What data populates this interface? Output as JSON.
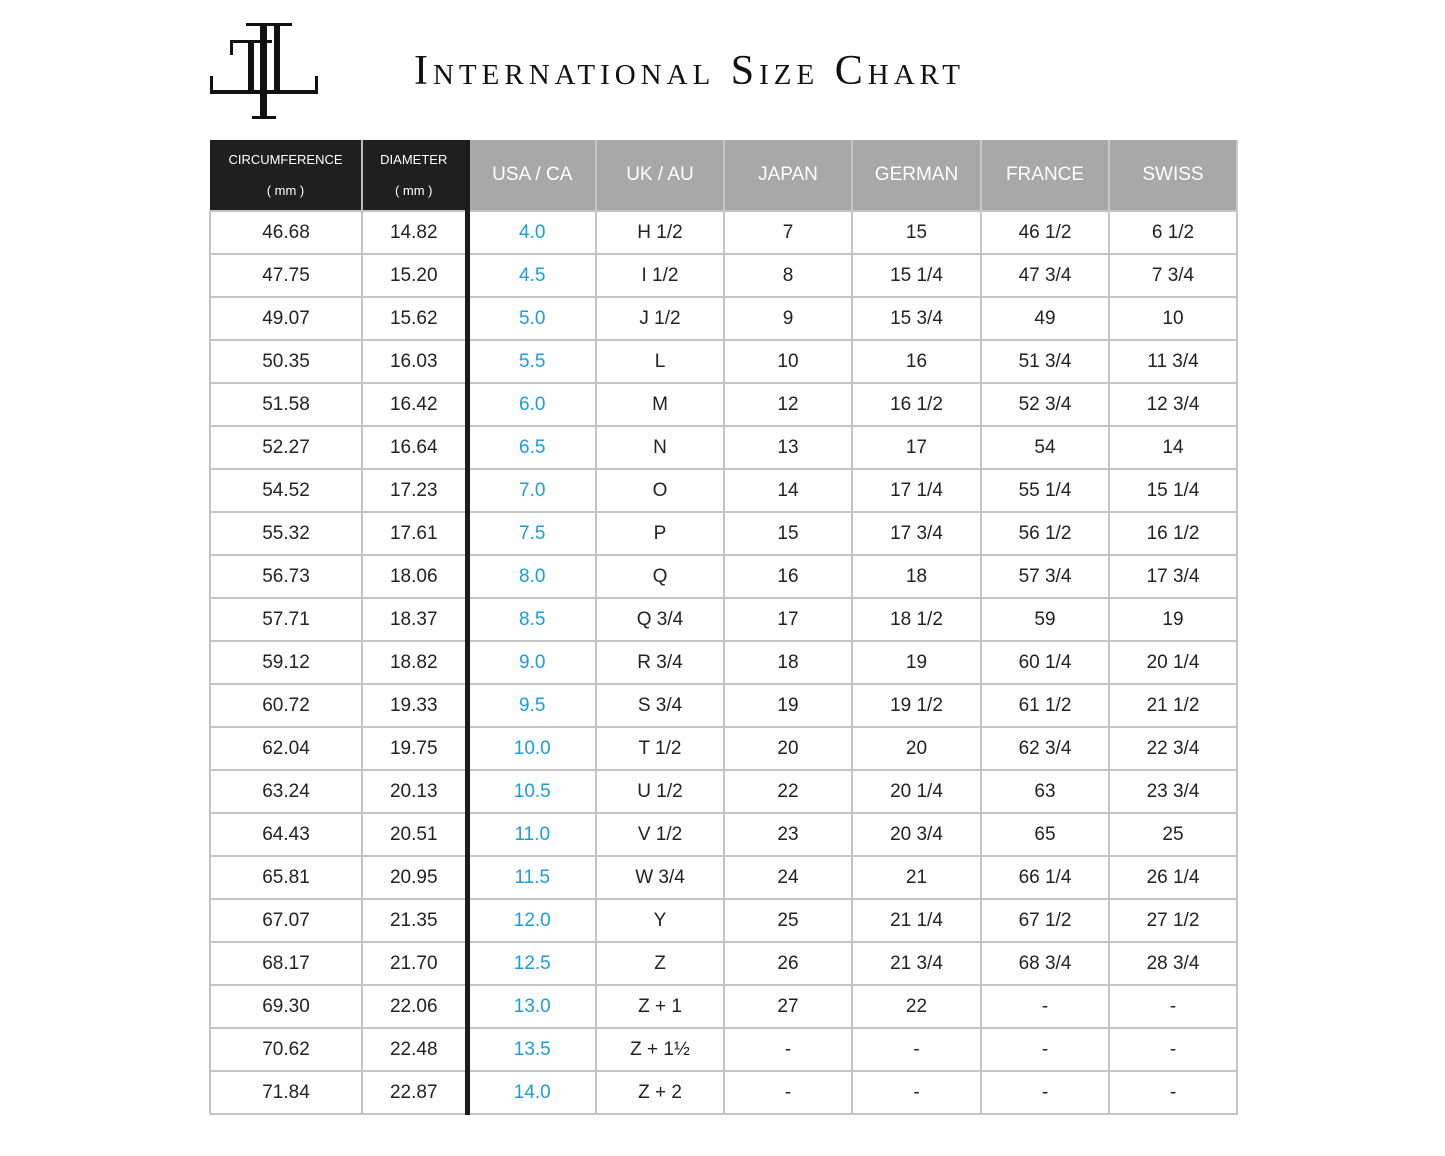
{
  "title": "International Size Chart",
  "logo": {
    "letters": "TIL"
  },
  "colors": {
    "usa_text": "#1a9ce0",
    "dark_header": "#1f1f1f",
    "grey_header": "#a8a8a8"
  },
  "headers": [
    {
      "label": "CIRCUMFERENCE",
      "sub": "( mm )"
    },
    {
      "label": "DIAMETER",
      "sub": "( mm )"
    },
    {
      "label": "USA / CA"
    },
    {
      "label": "UK / AU"
    },
    {
      "label": "JAPAN"
    },
    {
      "label": "GERMAN"
    },
    {
      "label": "FRANCE"
    },
    {
      "label": "SWISS"
    }
  ],
  "rows": [
    [
      "46.68",
      "14.82",
      "4.0",
      "H 1/2",
      "7",
      "15",
      "46 1/2",
      "6 1/2"
    ],
    [
      "47.75",
      "15.20",
      "4.5",
      "I 1/2",
      "8",
      "15 1/4",
      "47 3/4",
      "7 3/4"
    ],
    [
      "49.07",
      "15.62",
      "5.0",
      "J 1/2",
      "9",
      "15 3/4",
      "49",
      "10"
    ],
    [
      "50.35",
      "16.03",
      "5.5",
      "L",
      "10",
      "16",
      "51 3/4",
      "11 3/4"
    ],
    [
      "51.58",
      "16.42",
      "6.0",
      "M",
      "12",
      "16 1/2",
      "52 3/4",
      "12 3/4"
    ],
    [
      "52.27",
      "16.64",
      "6.5",
      "N",
      "13",
      "17",
      "54",
      "14"
    ],
    [
      "54.52",
      "17.23",
      "7.0",
      "O",
      "14",
      "17 1/4",
      "55 1/4",
      "15 1/4"
    ],
    [
      "55.32",
      "17.61",
      "7.5",
      "P",
      "15",
      "17 3/4",
      "56 1/2",
      "16 1/2"
    ],
    [
      "56.73",
      "18.06",
      "8.0",
      "Q",
      "16",
      "18",
      "57 3/4",
      "17 3/4"
    ],
    [
      "57.71",
      "18.37",
      "8.5",
      "Q 3/4",
      "17",
      "18 1/2",
      "59",
      "19"
    ],
    [
      "59.12",
      "18.82",
      "9.0",
      "R 3/4",
      "18",
      "19",
      "60 1/4",
      "20 1/4"
    ],
    [
      "60.72",
      "19.33",
      "9.5",
      "S 3/4",
      "19",
      "19 1/2",
      "61 1/2",
      "21 1/2"
    ],
    [
      "62.04",
      "19.75",
      "10.0",
      "T 1/2",
      "20",
      "20",
      "62 3/4",
      "22 3/4"
    ],
    [
      "63.24",
      "20.13",
      "10.5",
      "U 1/2",
      "22",
      "20 1/4",
      "63",
      "23 3/4"
    ],
    [
      "64.43",
      "20.51",
      "11.0",
      "V 1/2",
      "23",
      "20 3/4",
      "65",
      "25"
    ],
    [
      "65.81",
      "20.95",
      "11.5",
      "W 3/4",
      "24",
      "21",
      "66 1/4",
      "26 1/4"
    ],
    [
      "67.07",
      "21.35",
      "12.0",
      "Y",
      "25",
      "21 1/4",
      "67 1/2",
      "27 1/2"
    ],
    [
      "68.17",
      "21.70",
      "12.5",
      "Z",
      "26",
      "21 3/4",
      "68 3/4",
      "28 3/4"
    ],
    [
      "69.30",
      "22.06",
      "13.0",
      "Z + 1",
      "27",
      "22",
      "-",
      "-"
    ],
    [
      "70.62",
      "22.48",
      "13.5",
      "Z + 1½",
      "-",
      "-",
      "-",
      "-"
    ],
    [
      "71.84",
      "22.87",
      "14.0",
      "Z + 2",
      "-",
      "-",
      "-",
      "-"
    ]
  ]
}
